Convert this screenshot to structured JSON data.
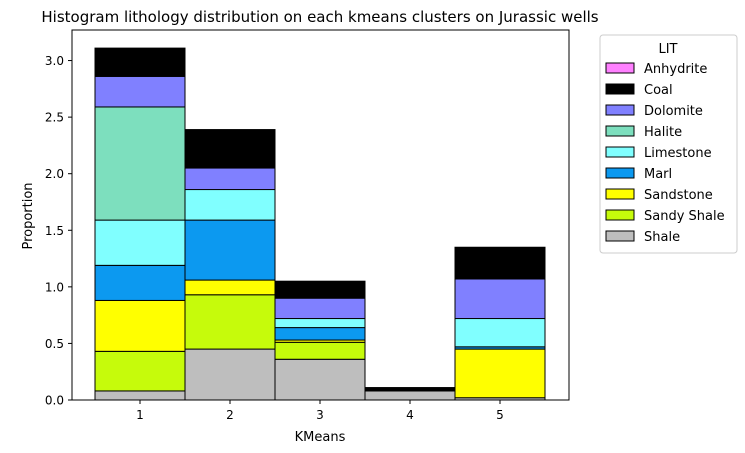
{
  "chart_data": {
    "type": "bar",
    "stacked": true,
    "title": "Histogram lithology distribution on each kmeans clusters on Jurassic wells",
    "xlabel": "KMeans",
    "ylabel": "Proportion",
    "categories": [
      "1",
      "2",
      "3",
      "4",
      "5"
    ],
    "ylim": [
      0,
      3.27
    ],
    "yticks": [
      "0.0",
      "0.5",
      "1.0",
      "1.5",
      "2.0",
      "2.5",
      "3.0"
    ],
    "grid": false,
    "legend": {
      "title": "LIT",
      "placement": "outside-right"
    },
    "series": [
      {
        "name": "Shale",
        "color": "#bebebe",
        "values": [
          0.08,
          0.45,
          0.36,
          0.08,
          0.02
        ]
      },
      {
        "name": "Sandy Shale",
        "color": "#c6fb0b",
        "values": [
          0.35,
          0.48,
          0.15,
          0.0,
          0.0
        ]
      },
      {
        "name": "Sandstone",
        "color": "#ffff00",
        "values": [
          0.45,
          0.13,
          0.02,
          0.0,
          0.43
        ]
      },
      {
        "name": "Marl",
        "color": "#0c99f0",
        "values": [
          0.31,
          0.53,
          0.11,
          0.0,
          0.02
        ]
      },
      {
        "name": "Limestone",
        "color": "#80ffff",
        "values": [
          0.4,
          0.27,
          0.08,
          0.0,
          0.25
        ]
      },
      {
        "name": "Halite",
        "color": "#7ddfbe",
        "values": [
          1.0,
          0.0,
          0.0,
          0.0,
          0.0
        ]
      },
      {
        "name": "Dolomite",
        "color": "#8080ff",
        "values": [
          0.27,
          0.19,
          0.18,
          0.0,
          0.35
        ]
      },
      {
        "name": "Coal",
        "color": "#000000",
        "values": [
          0.25,
          0.34,
          0.15,
          0.03,
          0.28
        ]
      },
      {
        "name": "Anhydrite",
        "color": "#ff80ff",
        "values": [
          0.0,
          0.0,
          0.0,
          0.0,
          0.0
        ]
      }
    ],
    "legend_order": [
      "Anhydrite",
      "Coal",
      "Dolomite",
      "Halite",
      "Limestone",
      "Marl",
      "Sandstone",
      "Sandy Shale",
      "Shale"
    ]
  }
}
